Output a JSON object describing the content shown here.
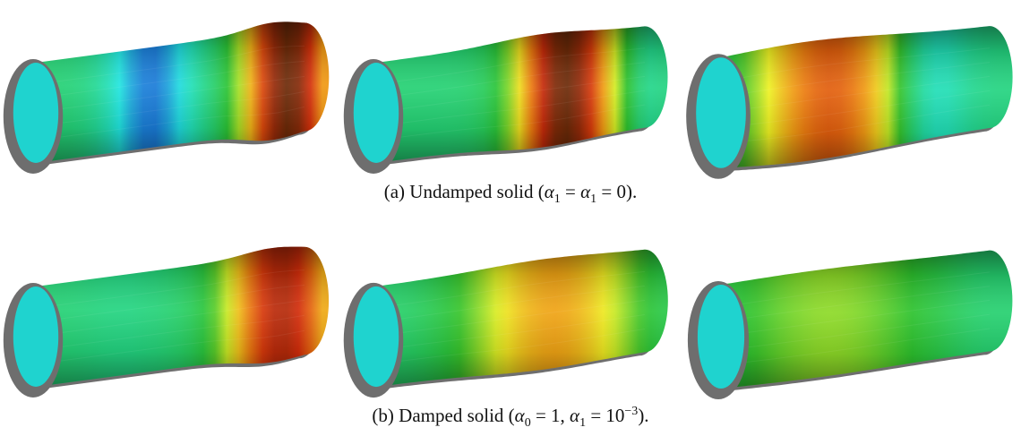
{
  "panels": [
    {
      "id": "a",
      "caption": {
        "label": "(a)",
        "lead": "Undamped solid (",
        "sym1": "α",
        "sub1": "1",
        "mid": " = ",
        "sym2": "α",
        "sub2": "1",
        "tail": " = 0)."
      },
      "snapshots": [
        {
          "bulge_center": 0.88,
          "bulge_amp": 0.17,
          "bulge_width": 0.1,
          "color_peak_center": 0.88,
          "color_peak_width": 0.11,
          "color_peak_level": 1.0,
          "color_trough_center": 0.4,
          "color_trough_width": 0.1,
          "color_trough_level": 0.0,
          "base_level": 0.32
        },
        {
          "bulge_center": 0.62,
          "bulge_amp": 0.13,
          "bulge_width": 0.17,
          "color_peak_center": 0.66,
          "color_peak_width": 0.12,
          "color_peak_level": 1.0,
          "color_trough_center": 0.94,
          "color_trough_width": 0.05,
          "color_trough_level": 0.25,
          "base_level": 0.32
        },
        {
          "bulge_center": 0.33,
          "bulge_amp": 0.19,
          "bulge_width": 0.3,
          "color_peak_center": 0.38,
          "color_peak_width": 0.2,
          "color_peak_level": 0.78,
          "color_trough_center": 0.73,
          "color_trough_width": 0.09,
          "color_trough_level": 0.12,
          "base_level": 0.3
        }
      ]
    },
    {
      "id": "b",
      "caption": {
        "label": "(b)",
        "lead": "Damped solid (",
        "sym1": "α",
        "sub1": "0",
        "mid": " = 1, ",
        "sym2": "α",
        "sub2": "1",
        "tail_pre": " = 10",
        "sup": "−3",
        "tail": ")."
      },
      "snapshots": [
        {
          "bulge_center": 0.88,
          "bulge_amp": 0.14,
          "bulge_width": 0.11,
          "color_peak_center": 0.86,
          "color_peak_width": 0.14,
          "color_peak_level": 0.9,
          "color_trough_center": 0.3,
          "color_trough_width": 0.1,
          "color_trough_level": 0.3,
          "base_level": 0.32
        },
        {
          "bulge_center": 0.62,
          "bulge_amp": 0.1,
          "bulge_width": 0.22,
          "color_peak_center": 0.62,
          "color_peak_width": 0.22,
          "color_peak_level": 0.68,
          "color_trough_center": 0.95,
          "color_trough_width": 0.05,
          "color_trough_level": 0.3,
          "base_level": 0.32
        },
        {
          "bulge_center": 0.35,
          "bulge_amp": 0.07,
          "bulge_width": 0.3,
          "color_peak_center": 0.38,
          "color_peak_width": 0.28,
          "color_peak_level": 0.5,
          "color_trough_center": 0.9,
          "color_trough_width": 0.08,
          "color_trough_level": 0.3,
          "base_level": 0.32
        }
      ]
    }
  ],
  "colors": {
    "end_cap": "#1fd3cf",
    "wall": "#6e6e6e",
    "colormap": [
      "#1a78d8",
      "#20e6e0",
      "#22d68a",
      "#2cc22c",
      "#eef222",
      "#f08a10",
      "#d22a0a",
      "#6a2a08"
    ]
  }
}
